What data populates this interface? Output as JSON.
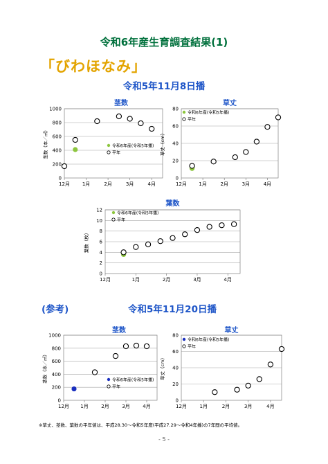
{
  "page": {
    "title": "令和6年産生育調査結果(1)",
    "variety": "「びわほなみ」",
    "sowing_main": "令和5年11月8日播",
    "reference_label": "(参考)",
    "sowing_ref": "令和5年11月20日播",
    "note": "※草丈、茎数、葉数の平年値は、平成28.30～令和5年度(平成27.29～令和4年播)の7年間の平均値。",
    "page_number": "- 5 -",
    "colors": {
      "green_series": "#8dc63f",
      "blue_series": "#1a2fbf",
      "title_green": "#00703c",
      "title_blue": "#1f56c8",
      "variety_orange": "#e3a400"
    }
  },
  "chart_data": [
    {
      "id": "stems-nov8",
      "type": "scatter",
      "title": "茎数",
      "ylabel": "茎数（本／㎡）",
      "ylim": [
        0,
        1000
      ],
      "yticks": [
        0,
        200,
        400,
        600,
        800,
        1000
      ],
      "xlim": [
        0,
        4.5
      ],
      "xtick_labels": [
        "12月",
        "1月",
        "2月",
        "3月",
        "4月"
      ],
      "xticks": [
        0,
        1,
        2,
        3,
        4
      ],
      "legend": [
        "令和6年産(令和5年播)",
        "平年"
      ],
      "legend_position": "center-right",
      "series": [
        {
          "name": "令和6年産(令和5年播)",
          "marker": "filled-green",
          "x": [
            0.0,
            0.5
          ],
          "y": [
            175,
            410
          ]
        },
        {
          "name": "平年",
          "marker": "open",
          "x": [
            0.0,
            0.5,
            1.5,
            2.5,
            3.0,
            3.5,
            4.0
          ],
          "y": [
            170,
            550,
            820,
            890,
            855,
            790,
            710
          ]
        }
      ]
    },
    {
      "id": "height-nov8",
      "type": "scatter",
      "title": "草丈",
      "ylabel": "草丈（cm）",
      "ylim": [
        0,
        80
      ],
      "yticks": [
        0,
        20,
        40,
        60,
        80
      ],
      "xlim": [
        0,
        4.5
      ],
      "xtick_labels": [
        "12月",
        "1月",
        "2月",
        "3月",
        "4月"
      ],
      "xticks": [
        0,
        1,
        2,
        3,
        4
      ],
      "legend": [
        "令和6年産(令和5年播)",
        "平年"
      ],
      "legend_position": "top-left",
      "series": [
        {
          "name": "令和6年産(令和5年播)",
          "marker": "filled-green",
          "x": [
            0.5
          ],
          "y": [
            11
          ]
        },
        {
          "name": "平年",
          "marker": "open",
          "x": [
            0.5,
            1.5,
            2.5,
            3.0,
            3.5,
            4.0,
            4.5
          ],
          "y": [
            14,
            19,
            24,
            30,
            42,
            59,
            70
          ]
        }
      ]
    },
    {
      "id": "leaves-nov8",
      "type": "scatter",
      "title": "葉数",
      "ylabel": "葉数（枚）",
      "ylim": [
        0,
        12
      ],
      "yticks": [
        0,
        2,
        4,
        6,
        8,
        10,
        12
      ],
      "xlim": [
        0,
        5.5
      ],
      "xtick_labels": [
        "12月",
        "1月",
        "2月",
        "3月",
        "4月"
      ],
      "xticks": [
        0,
        1.25,
        2.5,
        3.75,
        5
      ],
      "legend": [
        "令和6年産(令和5年播)",
        "平年"
      ],
      "legend_position": "top-left",
      "series": [
        {
          "name": "令和6年産(令和5年播)",
          "marker": "filled-green",
          "x": [
            0.75
          ],
          "y": [
            3.6
          ]
        },
        {
          "name": "平年",
          "marker": "open",
          "x": [
            0.75,
            1.25,
            1.75,
            2.25,
            2.75,
            3.25,
            3.75,
            4.25,
            4.75,
            5.25
          ],
          "y": [
            4.0,
            5.0,
            5.5,
            6.1,
            6.7,
            7.4,
            8.2,
            8.8,
            9.1,
            9.3
          ]
        }
      ]
    },
    {
      "id": "stems-nov20",
      "type": "scatter",
      "title": "茎数",
      "ylabel": "茎数（本／㎡）",
      "ylim": [
        0,
        1000
      ],
      "yticks": [
        0,
        200,
        400,
        600,
        800,
        1000
      ],
      "xlim": [
        0,
        4.5
      ],
      "xtick_labels": [
        "12月",
        "1月",
        "2月",
        "3月",
        "4月"
      ],
      "xticks": [
        0,
        1,
        2,
        3,
        4
      ],
      "legend": [
        "令和6年産(令和5年播)",
        "平年"
      ],
      "legend_position": "center-right",
      "series": [
        {
          "name": "令和6年産(令和5年播)",
          "marker": "filled-blue",
          "x": [
            0.5
          ],
          "y": [
            175
          ]
        },
        {
          "name": "平年",
          "marker": "open",
          "x": [
            1.5,
            2.5,
            3.0,
            3.5,
            4.0
          ],
          "y": [
            430,
            680,
            830,
            840,
            830
          ]
        }
      ]
    },
    {
      "id": "height-nov20",
      "type": "scatter",
      "title": "草丈",
      "ylabel": "草丈（cm）",
      "ylim": [
        0,
        80
      ],
      "yticks": [
        0,
        20,
        40,
        60,
        80
      ],
      "xlim": [
        0,
        4.5
      ],
      "xtick_labels": [
        "12月",
        "1月",
        "2月",
        "3月",
        "4月"
      ],
      "xticks": [
        0,
        1,
        2,
        3,
        4
      ],
      "legend": [
        "令和6年産(令和5年播)",
        "平年"
      ],
      "legend_position": "top-left",
      "series": [
        {
          "name": "令和6年産(令和5年播)",
          "marker": "filled-blue",
          "x": [],
          "y": []
        },
        {
          "name": "平年",
          "marker": "open",
          "x": [
            1.5,
            2.5,
            3.0,
            3.5,
            4.0,
            4.5
          ],
          "y": [
            10,
            13,
            18,
            26,
            44,
            63
          ]
        }
      ]
    }
  ]
}
